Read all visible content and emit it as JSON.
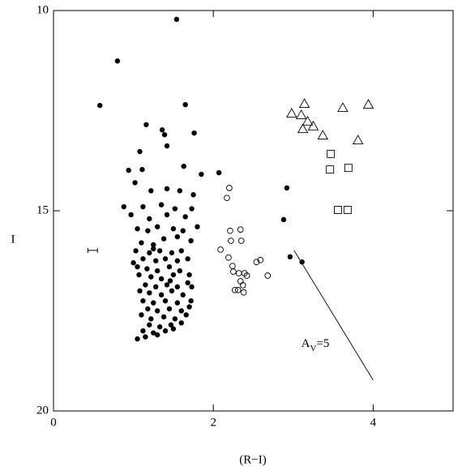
{
  "chart_data": {
    "type": "scatter",
    "xlabel": "(R−I)",
    "ylabel": "I",
    "xlim": [
      0,
      5
    ],
    "ylim": [
      10,
      20
    ],
    "y_inverted": true,
    "xticks": [
      0,
      2,
      4
    ],
    "yticks": [
      10,
      15,
      20
    ],
    "series": [
      {
        "marker": "filled-circle",
        "color": "#000000",
        "x": [
          1.54,
          0.8,
          0.58,
          1.65,
          1.16,
          1.76,
          1.36,
          1.39,
          1.08,
          1.42,
          0.94,
          1.11,
          1.63,
          1.85,
          2.07,
          2.92,
          2.88,
          2.96,
          3.11,
          1.02,
          1.22,
          1.42,
          1.58,
          1.75,
          0.88,
          1.12,
          1.35,
          1.52,
          1.73,
          0.97,
          1.2,
          1.42,
          1.65,
          1.05,
          1.18,
          1.3,
          1.5,
          1.62,
          1.8,
          1.38,
          1.55,
          1.72,
          1.1,
          1.25,
          1.03,
          1.2,
          1.33,
          1.48,
          1.6,
          1.12,
          1.28,
          1.4,
          1.55,
          1.68,
          1.05,
          1.17,
          1.3,
          1.45,
          1.58,
          1.07,
          1.22,
          1.35,
          1.5,
          1.7,
          1.15,
          1.28,
          1.42,
          1.55,
          1.68,
          1.08,
          1.2,
          1.35,
          1.48,
          1.62,
          1.12,
          1.25,
          1.4,
          1.55,
          1.72,
          1.18,
          1.3,
          1.45,
          1.6,
          1.1,
          1.22,
          1.38,
          1.52,
          1.66,
          1.2,
          1.33,
          1.47,
          1.6,
          1.12,
          1.25,
          1.4,
          1.15,
          1.3,
          1.05,
          1.5,
          1.7,
          1.73,
          1.0,
          1.25,
          1.46
        ],
        "y": [
          10.22,
          11.26,
          12.37,
          12.35,
          12.85,
          13.06,
          12.98,
          13.1,
          13.52,
          13.38,
          13.99,
          13.97,
          13.89,
          14.09,
          14.05,
          14.43,
          15.22,
          16.15,
          16.28,
          14.3,
          14.5,
          14.45,
          14.5,
          14.6,
          14.9,
          14.9,
          14.85,
          14.95,
          14.95,
          15.1,
          15.2,
          15.1,
          15.15,
          15.45,
          15.5,
          15.4,
          15.45,
          15.5,
          15.4,
          15.7,
          15.65,
          15.75,
          15.8,
          15.85,
          16.0,
          16.05,
          16.0,
          16.05,
          16.0,
          16.2,
          16.25,
          16.2,
          16.25,
          16.2,
          16.4,
          16.45,
          16.5,
          16.4,
          16.5,
          16.6,
          16.65,
          16.7,
          16.6,
          16.6,
          16.85,
          16.9,
          16.85,
          16.9,
          16.8,
          17.0,
          17.05,
          17.1,
          17.0,
          17.1,
          17.25,
          17.3,
          17.25,
          17.3,
          17.25,
          17.45,
          17.5,
          17.45,
          17.5,
          17.6,
          17.7,
          17.65,
          17.7,
          17.6,
          17.85,
          17.9,
          17.85,
          17.8,
          18.0,
          18.05,
          18.0,
          18.15,
          18.1,
          18.2,
          17.95,
          17.4,
          16.9,
          16.3,
          15.95,
          16.75
        ]
      },
      {
        "marker": "open-circle",
        "color": "#000000",
        "x": [
          2.2,
          2.17,
          2.21,
          2.34,
          2.22,
          2.35,
          2.09,
          2.19,
          2.24,
          2.25,
          2.59,
          2.54,
          2.32,
          2.39,
          2.42,
          2.34,
          2.37,
          2.31,
          2.38,
          2.27,
          2.68
        ],
        "y": [
          14.43,
          14.68,
          15.5,
          15.47,
          15.75,
          15.75,
          15.97,
          16.17,
          16.38,
          16.52,
          16.23,
          16.28,
          16.56,
          16.56,
          16.62,
          16.76,
          16.86,
          16.98,
          17.04,
          16.98,
          16.62
        ]
      },
      {
        "marker": "open-triangle",
        "color": "#000000",
        "x": [
          3.14,
          2.98,
          3.1,
          3.18,
          3.25,
          3.12,
          3.37,
          3.62,
          3.94,
          3.81
        ],
        "y": [
          12.33,
          12.57,
          12.61,
          12.77,
          12.89,
          12.96,
          13.12,
          12.43,
          12.35,
          13.24
        ]
      },
      {
        "marker": "open-square",
        "color": "#000000",
        "x": [
          3.47,
          3.46,
          3.69,
          3.56,
          3.68
        ],
        "y": [
          13.58,
          13.97,
          13.93,
          14.98,
          14.98
        ]
      }
    ],
    "errorbar": {
      "x": 0.49,
      "y": 15.99,
      "xerr": 0.06
    },
    "vector": {
      "x": [
        3.01,
        4.0
      ],
      "y": [
        15.99,
        19.23
      ]
    },
    "annotation": {
      "base": "A",
      "sub": "V",
      "tail": "=5",
      "x": 3.1,
      "y": 18.34
    }
  }
}
